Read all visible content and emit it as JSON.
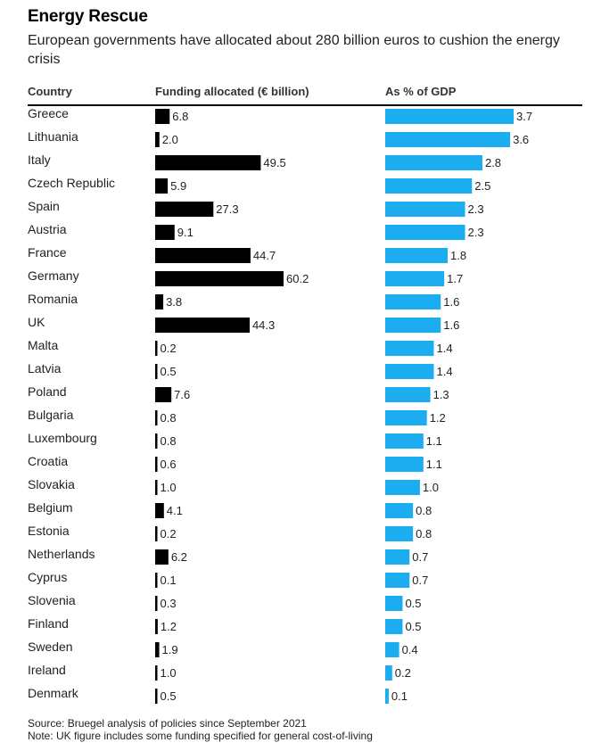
{
  "title": "Energy Rescue",
  "subtitle": "European governments have allocated about 280 billion euros to cushion the energy crisis",
  "headers": {
    "country": "Country",
    "funding": "Funding allocated (€ billion)",
    "gdp": "As % of GDP"
  },
  "source": "Source: Bruegel analysis of policies since September 2021",
  "note": "Note: UK figure includes some funding specified for general cost-of-living",
  "colors": {
    "funding": "#000000",
    "gdp": "#1cadf0"
  },
  "chart_data": {
    "type": "bar",
    "orientation": "horizontal",
    "title": "Energy Rescue",
    "categories": [
      "Greece",
      "Lithuania",
      "Italy",
      "Czech Republic",
      "Spain",
      "Austria",
      "France",
      "Germany",
      "Romania",
      "UK",
      "Malta",
      "Latvia",
      "Poland",
      "Bulgaria",
      "Luxembourg",
      "Croatia",
      "Slovakia",
      "Belgium",
      "Estonia",
      "Netherlands",
      "Cyprus",
      "Slovenia",
      "Finland",
      "Sweden",
      "Ireland",
      "Denmark"
    ],
    "series": [
      {
        "name": "Funding allocated (€ billion)",
        "values": [
          6.8,
          2.0,
          49.5,
          5.9,
          27.3,
          9.1,
          44.7,
          60.2,
          3.8,
          44.3,
          0.2,
          0.5,
          7.6,
          0.8,
          0.8,
          0.6,
          1.0,
          4.1,
          0.2,
          6.2,
          0.1,
          0.3,
          1.2,
          1.9,
          1.0,
          0.5
        ],
        "labels": [
          "6.8",
          "2.0",
          "49.5",
          "5.9",
          "27.3",
          "9.1",
          "44.7",
          "60.2",
          "3.8",
          "44.3",
          "0.2",
          "0.5",
          "7.6",
          "0.8",
          "0.8",
          "0.6",
          "1.0",
          "4.1",
          "0.2",
          "6.2",
          "0.1",
          "0.3",
          "1.2",
          "1.9",
          "1.0",
          "0.5"
        ]
      },
      {
        "name": "As % of GDP",
        "values": [
          3.7,
          3.6,
          2.8,
          2.5,
          2.3,
          2.3,
          1.8,
          1.7,
          1.6,
          1.6,
          1.4,
          1.4,
          1.3,
          1.2,
          1.1,
          1.1,
          1.0,
          0.8,
          0.8,
          0.7,
          0.7,
          0.5,
          0.5,
          0.4,
          0.2,
          0.1
        ],
        "labels": [
          "3.7",
          "3.6",
          "2.8",
          "2.5",
          "2.3",
          "2.3",
          "1.8",
          "1.7",
          "1.6",
          "1.6",
          "1.4",
          "1.4",
          "1.3",
          "1.2",
          "1.1",
          "1.1",
          "1.0",
          "0.8",
          "0.8",
          "0.7",
          "0.7",
          "0.5",
          "0.5",
          "0.4",
          "0.2",
          "0.1"
        ]
      }
    ],
    "xlim_funding": [
      0,
      60.2
    ],
    "xlim_gdp": [
      0,
      3.7
    ]
  }
}
